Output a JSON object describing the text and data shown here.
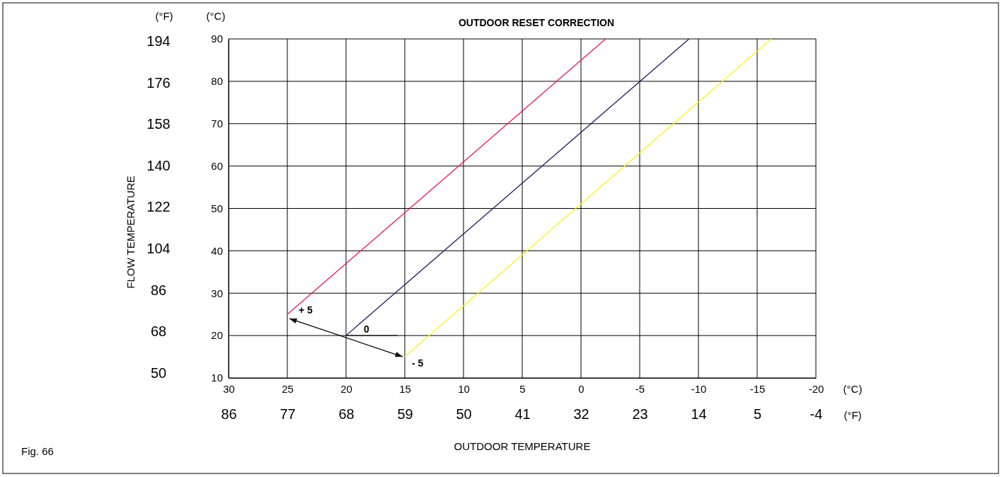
{
  "chart_data": {
    "type": "line",
    "title": "OUTDOOR RESET CORRECTION",
    "xlabel": "OUTDOOR TEMPERATURE",
    "y2label": "FLOW TEMPERATURE",
    "xlim": [
      30,
      -20
    ],
    "xticks": [
      30,
      25,
      20,
      15,
      10,
      5,
      0,
      -5,
      -10,
      -15,
      -20
    ],
    "x2lim": [
      86,
      -4
    ],
    "x2ticks": [
      86,
      77,
      68,
      59,
      50,
      41,
      32,
      23,
      14,
      5,
      -4
    ],
    "ylim": [
      10,
      90
    ],
    "yticks": [
      10,
      20,
      30,
      40,
      50,
      60,
      70,
      80,
      90
    ],
    "y2lim": [
      50,
      194
    ],
    "y2ticks": [
      50,
      68,
      86,
      104,
      122,
      140,
      158,
      176,
      194
    ],
    "grid": true,
    "marker": "none",
    "line_style": "solid",
    "series": [
      {
        "color": "#e8195a",
        "x": [
          25,
          -2.1
        ],
        "values": [
          25,
          90
        ]
      },
      {
        "color": "#1c1c5c",
        "x": [
          20,
          -9.2
        ],
        "values": [
          20,
          90
        ]
      },
      {
        "color": "#ffee22",
        "x": [
          15,
          -16.2
        ],
        "values": [
          15,
          90
        ]
      }
    ],
    "annotations": [
      "(°F)",
      "(°C)",
      "(°C)",
      "(°F)",
      "Fig. 66",
      {
        "text": "+ 5",
        "x": 25,
        "y": 25
      },
      {
        "text": "0",
        "x": 20,
        "y": 20
      },
      {
        "text": "- 5",
        "x": 15,
        "y": 15
      }
    ]
  }
}
